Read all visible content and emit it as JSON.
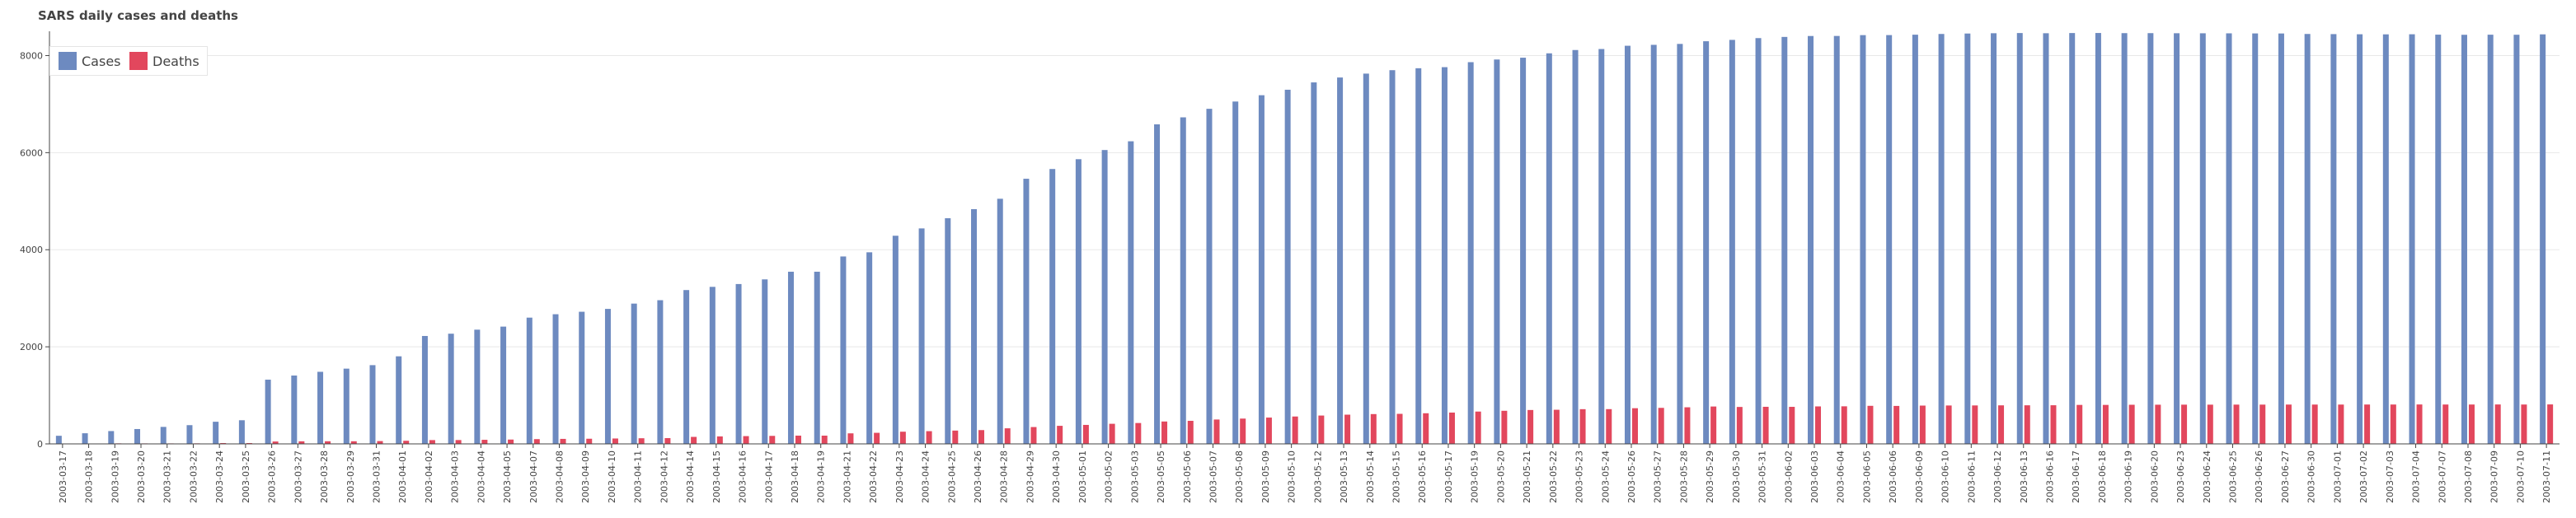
{
  "chart_data": {
    "type": "bar",
    "title": "SARS daily cases and deaths",
    "xlabel": "",
    "ylabel": "",
    "ylim": [
      0,
      8500
    ],
    "yticks": [
      0,
      2000,
      4000,
      6000,
      8000
    ],
    "grid": "horizontal",
    "legend_position": "top-left",
    "categories": [
      "2003-03-17",
      "2003-03-18",
      "2003-03-19",
      "2003-03-20",
      "2003-03-21",
      "2003-03-22",
      "2003-03-24",
      "2003-03-25",
      "2003-03-26",
      "2003-03-27",
      "2003-03-28",
      "2003-03-29",
      "2003-03-31",
      "2003-04-01",
      "2003-04-02",
      "2003-04-03",
      "2003-04-04",
      "2003-04-05",
      "2003-04-07",
      "2003-04-08",
      "2003-04-09",
      "2003-04-10",
      "2003-04-11",
      "2003-04-12",
      "2003-04-14",
      "2003-04-15",
      "2003-04-16",
      "2003-04-17",
      "2003-04-18",
      "2003-04-19",
      "2003-04-21",
      "2003-04-22",
      "2003-04-23",
      "2003-04-24",
      "2003-04-25",
      "2003-04-26",
      "2003-04-28",
      "2003-04-29",
      "2003-04-30",
      "2003-05-01",
      "2003-05-02",
      "2003-05-03",
      "2003-05-05",
      "2003-05-06",
      "2003-05-07",
      "2003-05-08",
      "2003-05-09",
      "2003-05-10",
      "2003-05-12",
      "2003-05-13",
      "2003-05-14",
      "2003-05-15",
      "2003-05-16",
      "2003-05-17",
      "2003-05-19",
      "2003-05-20",
      "2003-05-21",
      "2003-05-22",
      "2003-05-23",
      "2003-05-24",
      "2003-05-26",
      "2003-05-27",
      "2003-05-28",
      "2003-05-29",
      "2003-05-30",
      "2003-05-31",
      "2003-06-02",
      "2003-06-03",
      "2003-06-04",
      "2003-06-05",
      "2003-06-06",
      "2003-06-09",
      "2003-06-10",
      "2003-06-11",
      "2003-06-12",
      "2003-06-13",
      "2003-06-16",
      "2003-06-17",
      "2003-06-18",
      "2003-06-19",
      "2003-06-20",
      "2003-06-23",
      "2003-06-24",
      "2003-06-25",
      "2003-06-26",
      "2003-06-27",
      "2003-06-30",
      "2003-07-01",
      "2003-07-02",
      "2003-07-03",
      "2003-07-04",
      "2003-07-07",
      "2003-07-08",
      "2003-07-09",
      "2003-07-10",
      "2003-07-11"
    ],
    "series": [
      {
        "name": "Cases",
        "color": "#6d8ac0",
        "values": [
          167,
          219,
          264,
          306,
          350,
          386,
          456,
          487,
          1323,
          1408,
          1485,
          1550,
          1622,
          1804,
          2223,
          2270,
          2353,
          2416,
          2601,
          2671,
          2722,
          2781,
          2890,
          2960,
          3169,
          3235,
          3293,
          3389,
          3547,
          3547,
          3861,
          3947,
          4288,
          4439,
          4649,
          4836,
          5050,
          5462,
          5663,
          5865,
          6054,
          6234,
          6583,
          6727,
          6903,
          7053,
          7183,
          7296,
          7447,
          7548,
          7628,
          7699,
          7739,
          7761,
          7864,
          7919,
          7956,
          8046,
          8114,
          8135,
          8202,
          8221,
          8240,
          8295,
          8323,
          8360,
          8384,
          8403,
          8404,
          8421,
          8422,
          8430,
          8445,
          8454,
          8460,
          8464,
          8460,
          8464,
          8465,
          8462,
          8462,
          8460,
          8459,
          8458,
          8456,
          8455,
          8445,
          8442,
          8439,
          8437,
          8439,
          8431,
          8428,
          8430,
          8429,
          8437
        ]
      },
      {
        "name": "Deaths",
        "color": "#e2475d",
        "values": [
          4,
          4,
          11,
          10,
          10,
          11,
          17,
          17,
          49,
          53,
          54,
          54,
          58,
          64,
          78,
          79,
          84,
          89,
          98,
          103,
          106,
          111,
          116,
          119,
          144,
          154,
          160,
          165,
          170,
          170,
          217,
          228,
          251,
          262,
          274,
          284,
          321,
          347,
          372,
          391,
          414,
          430,
          461,
          475,
          502,
          521,
          542,
          564,
          584,
          602,
          614,
          619,
          631,
          645,
          666,
          682,
          698,
          703,
          715,
          716,
          735,
          742,
          754,
          770,
          761,
          764,
          763,
          772,
          774,
          784,
          782,
          789,
          791,
          792,
          794,
          795,
          796,
          803,
          803,
          806,
          807,
          808,
          808,
          809,
          809,
          810,
          810,
          810,
          811,
          811,
          812,
          811,
          811,
          812,
          811,
          813
        ]
      }
    ]
  }
}
